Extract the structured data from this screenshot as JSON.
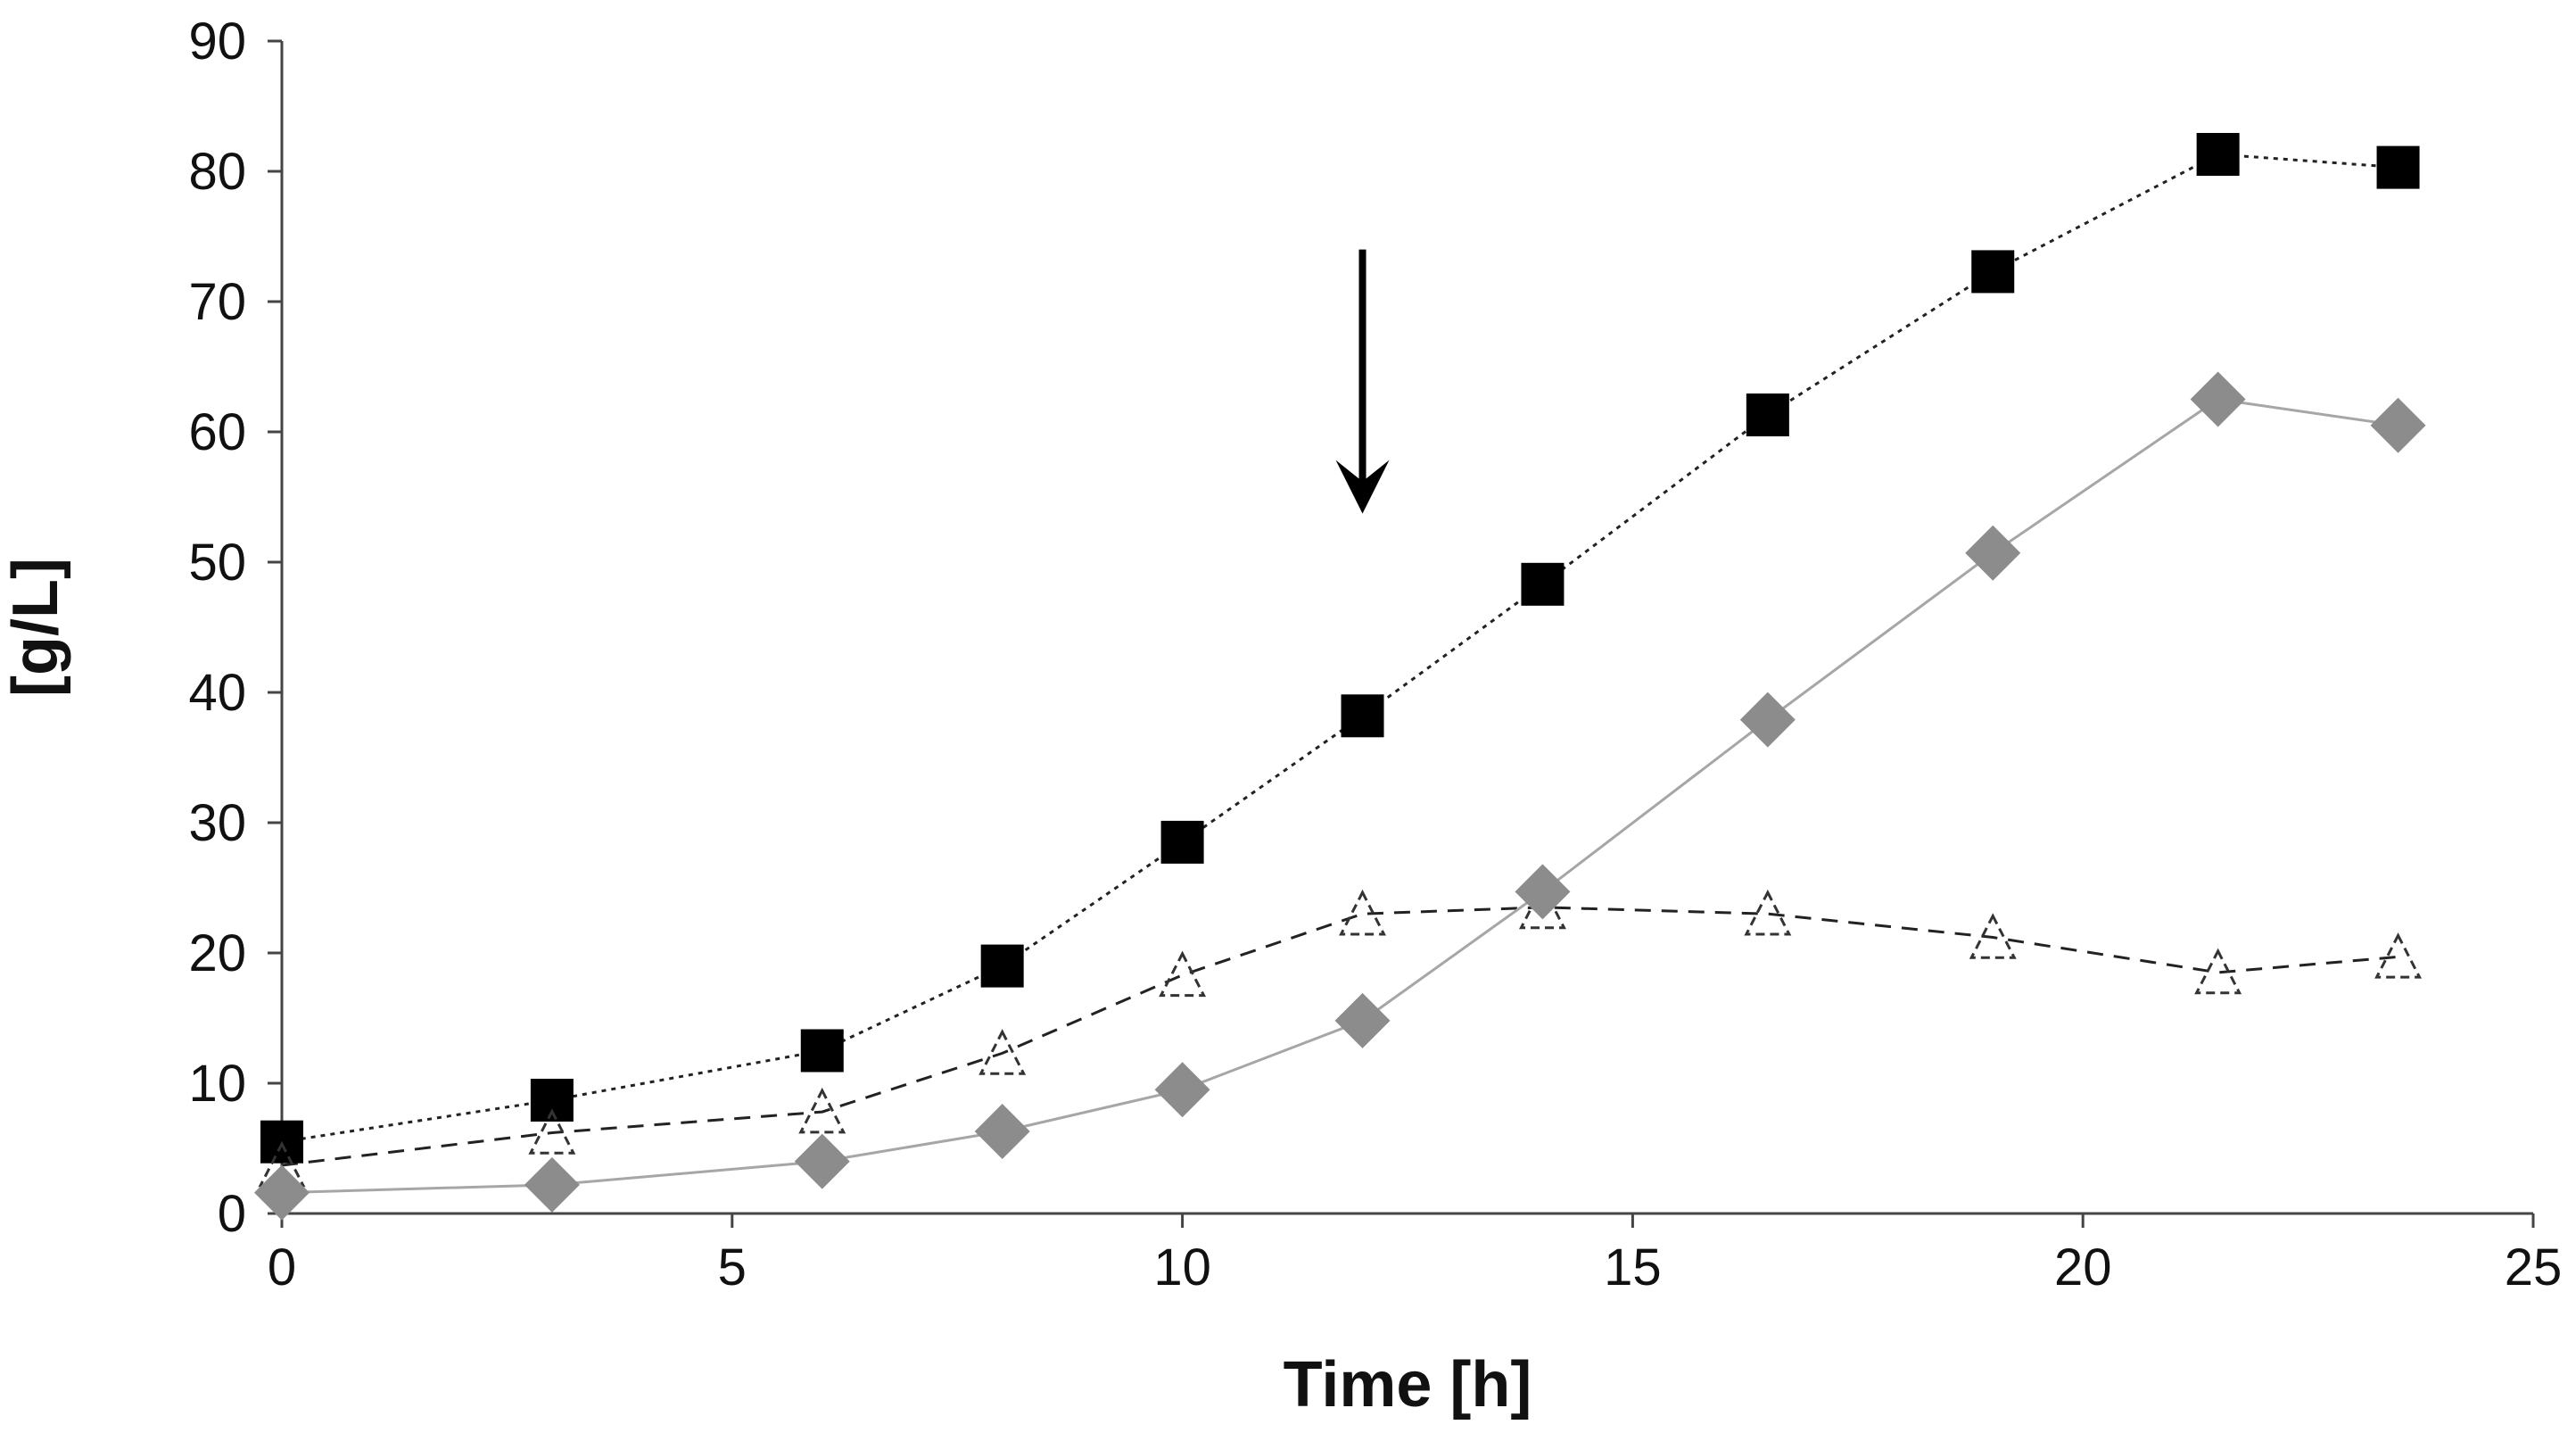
{
  "chart_data": {
    "type": "line",
    "title": "",
    "xlabel": "Time [h]",
    "ylabel": "[g/L]",
    "xlim": [
      0,
      25
    ],
    "ylim": [
      0,
      90
    ],
    "x_ticks": [
      0,
      5,
      10,
      15,
      20,
      25
    ],
    "y_ticks": [
      0,
      10,
      20,
      30,
      40,
      50,
      60,
      70,
      80,
      90
    ],
    "grid": false,
    "legend": "none",
    "annotation": {
      "type": "arrow",
      "direction": "down",
      "x": 12,
      "y_start": 74,
      "y_end": 54
    },
    "series": [
      {
        "name": "filled squares",
        "marker": "square",
        "color": "#000000",
        "line_style": "dotted",
        "x": [
          0,
          3,
          6,
          8,
          10,
          12,
          14,
          16.5,
          19,
          21.5,
          23.5
        ],
        "values": [
          5.5,
          8.7,
          12.5,
          19,
          28.5,
          38.2,
          48.3,
          61.3,
          72.3,
          81.3,
          80.3
        ]
      },
      {
        "name": "open triangles",
        "marker": "triangle-open",
        "color": "#333333",
        "line_style": "dashed",
        "x": [
          0,
          3,
          6,
          8,
          10,
          12,
          14,
          16.5,
          19,
          21.5,
          23.5
        ],
        "values": [
          3.7,
          6.2,
          7.8,
          12.3,
          18.3,
          23,
          23.5,
          23,
          21.2,
          18.5,
          19.7
        ]
      },
      {
        "name": "grey diamonds",
        "marker": "diamond",
        "color": "#8c8c8c",
        "line_style": "solid",
        "x": [
          0,
          3,
          6,
          8,
          10,
          12,
          14,
          16.5,
          19,
          21.5,
          23.5
        ],
        "values": [
          1.6,
          2.2,
          4.0,
          6.3,
          9.5,
          14.8,
          24.7,
          37.9,
          50.7,
          62.5,
          60.5
        ]
      }
    ]
  }
}
